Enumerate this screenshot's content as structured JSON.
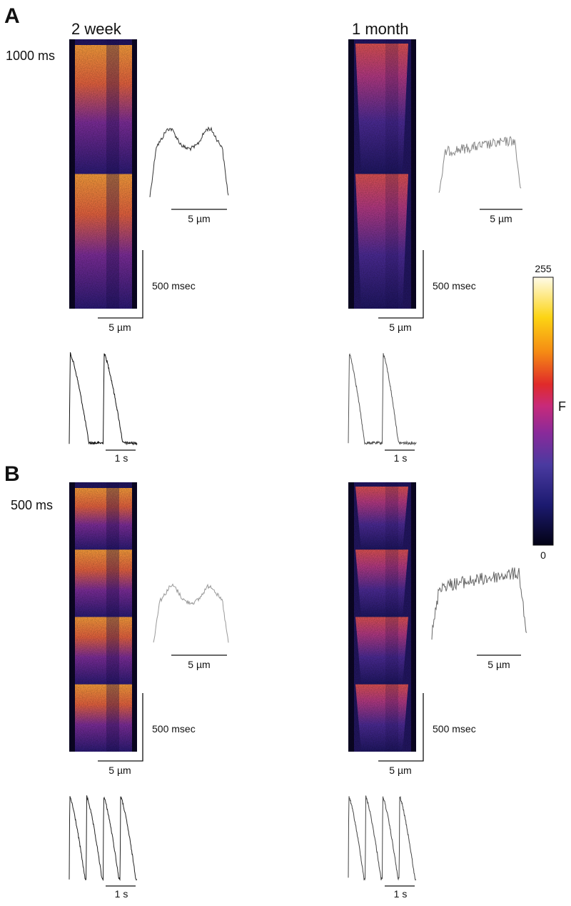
{
  "panels": [
    {
      "label": "A",
      "pacing": "1000 ms",
      "columns": [
        {
          "title": "2 week",
          "profile_scale": "5 µm",
          "time_scale": "500 msec",
          "space_scale": "5 µm",
          "transient_scale": "1 s"
        },
        {
          "title": "1 month",
          "profile_scale": "5 µm",
          "time_scale": "500 msec",
          "space_scale": "5 µm",
          "transient_scale": "1 s"
        }
      ]
    },
    {
      "label": "B",
      "pacing": "500 ms",
      "columns": [
        {
          "profile_scale": "5 µm",
          "time_scale": "500 msec",
          "space_scale": "5 µm",
          "transient_scale": "1 s"
        },
        {
          "profile_scale": "5 µm",
          "time_scale": "500 msec",
          "space_scale": "5 µm",
          "transient_scale": "1 s"
        }
      ]
    }
  ],
  "colorbar": {
    "max": "255",
    "min": "0",
    "label": "F"
  }
}
